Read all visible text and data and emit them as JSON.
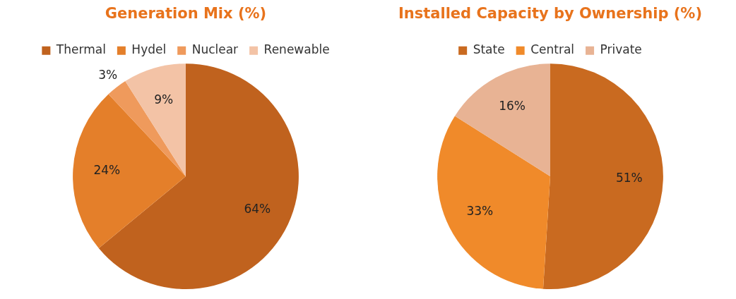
{
  "chart_data": [
    {
      "type": "pie",
      "title": "Generation Mix (%)",
      "categories": [
        "Thermal",
        "Hydel",
        "Nuclear",
        "Renewable"
      ],
      "values": [
        64,
        24,
        3,
        9
      ],
      "value_labels": [
        "64%",
        "24%",
        "3%",
        "9%"
      ],
      "colors": [
        "#c0621e",
        "#e47f2a",
        "#ef9a5c",
        "#f3c3a6"
      ],
      "legend": "top"
    },
    {
      "type": "pie",
      "title": "Installed Capacity by Ownership (%)",
      "categories": [
        "State",
        "Central",
        "Private"
      ],
      "values": [
        51,
        33,
        16
      ],
      "value_labels": [
        "51%",
        "33%",
        "16%"
      ],
      "colors": [
        "#c96a20",
        "#f08a2a",
        "#e8b394"
      ],
      "legend": "top"
    }
  ]
}
